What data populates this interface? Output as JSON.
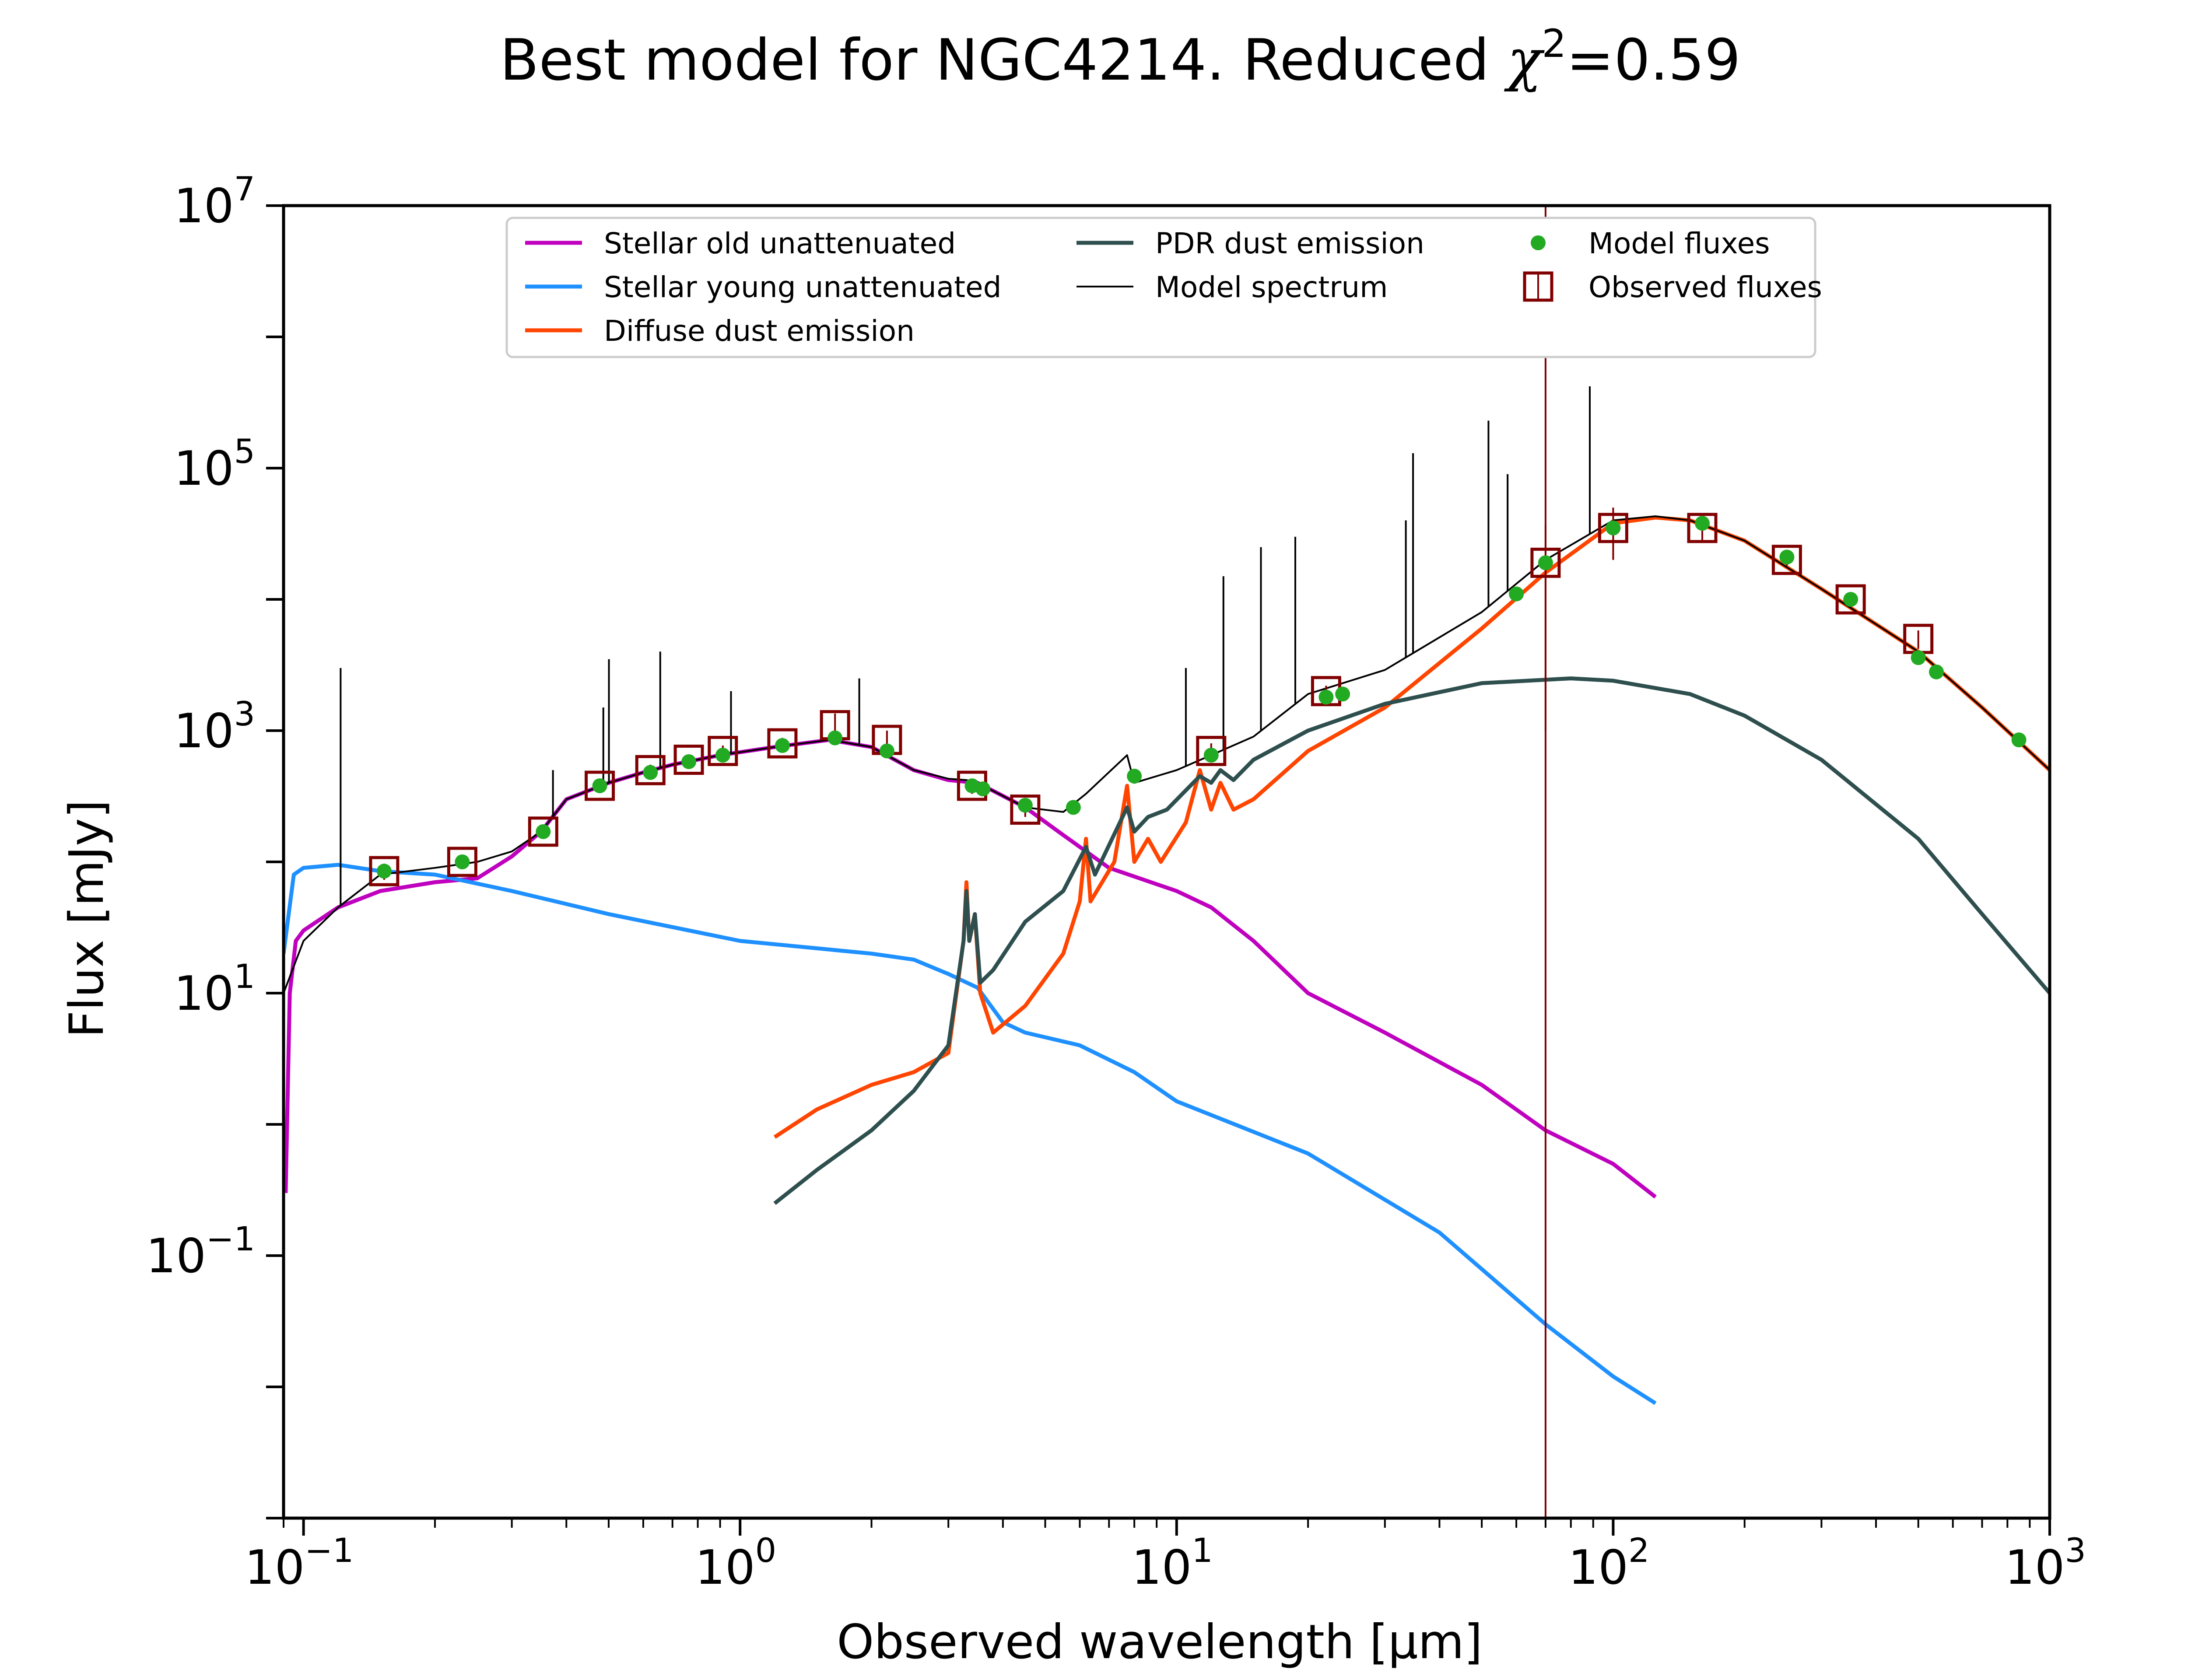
{
  "title": {
    "prefix": "Best model for NGC4214. Reduced ",
    "chi": "χ",
    "sup": "2",
    "suffix": "=0.59"
  },
  "chart_data": {
    "type": "line",
    "xlabel": "Observed wavelength [μm]",
    "ylabel": "Flux [mJy]",
    "xscale": "log",
    "yscale": "log",
    "xlim": [
      0.09,
      1000
    ],
    "ylim": [
      0.001,
      10000000
    ],
    "xticks": [
      {
        "value": 0.1,
        "base": "10",
        "exp": "−1"
      },
      {
        "value": 1,
        "base": "10",
        "exp": "0"
      },
      {
        "value": 10,
        "base": "10",
        "exp": "1"
      },
      {
        "value": 100,
        "base": "10",
        "exp": "2"
      },
      {
        "value": 1000,
        "base": "10",
        "exp": "3"
      }
    ],
    "yticks": [
      {
        "value": 0.1,
        "base": "10",
        "exp": "−1"
      },
      {
        "value": 10,
        "base": "10",
        "exp": "1"
      },
      {
        "value": 1000,
        "base": "10",
        "exp": "3"
      },
      {
        "value": 100000,
        "base": "10",
        "exp": "5"
      },
      {
        "value": 10000000,
        "base": "10",
        "exp": "7"
      }
    ],
    "legend": {
      "position": "top",
      "entries": [
        {
          "label": "Stellar old unattenuated",
          "color": "#bf00bf",
          "kind": "line"
        },
        {
          "label": "Stellar young unattenuated",
          "color": "#1e90ff",
          "kind": "line"
        },
        {
          "label": "Diffuse dust emission",
          "color": "#ff4500",
          "kind": "line"
        },
        {
          "label": "PDR dust emission",
          "color": "#2f4f4f",
          "kind": "line"
        },
        {
          "label": "Model spectrum",
          "color": "#000000",
          "kind": "thin-line"
        },
        {
          "label": "Model fluxes",
          "color": "#22aa22",
          "kind": "dot"
        },
        {
          "label": "Observed fluxes",
          "color": "#800000",
          "kind": "square"
        }
      ]
    },
    "series": [
      {
        "name": "Stellar old unattenuated",
        "color": "#bf00bf",
        "points": [
          [
            0.091,
            0.3
          ],
          [
            0.093,
            10
          ],
          [
            0.096,
            25
          ],
          [
            0.1,
            30
          ],
          [
            0.12,
            45
          ],
          [
            0.15,
            60
          ],
          [
            0.2,
            70
          ],
          [
            0.25,
            75
          ],
          [
            0.3,
            110
          ],
          [
            0.35,
            170
          ],
          [
            0.4,
            300
          ],
          [
            0.5,
            400
          ],
          [
            0.6,
            480
          ],
          [
            0.7,
            550
          ],
          [
            0.9,
            650
          ],
          [
            1.2,
            750
          ],
          [
            1.6,
            850
          ],
          [
            2.0,
            750
          ],
          [
            2.5,
            500
          ],
          [
            3.0,
            420
          ],
          [
            3.5,
            400
          ],
          [
            4.5,
            260
          ],
          [
            5.5,
            160
          ],
          [
            7,
            90
          ],
          [
            10,
            60
          ],
          [
            12,
            45
          ],
          [
            15,
            25
          ],
          [
            20,
            10
          ],
          [
            30,
            5
          ],
          [
            50,
            2
          ],
          [
            70,
            0.9
          ],
          [
            100,
            0.5
          ],
          [
            125,
            0.28
          ]
        ]
      },
      {
        "name": "Stellar young unattenuated",
        "color": "#1e90ff",
        "points": [
          [
            0.09,
            20
          ],
          [
            0.095,
            80
          ],
          [
            0.1,
            90
          ],
          [
            0.12,
            95
          ],
          [
            0.15,
            85
          ],
          [
            0.2,
            80
          ],
          [
            0.3,
            60
          ],
          [
            0.5,
            40
          ],
          [
            1.0,
            25
          ],
          [
            2.0,
            20
          ],
          [
            2.5,
            18
          ],
          [
            3.0,
            14
          ],
          [
            3.5,
            11
          ],
          [
            4,
            6
          ],
          [
            4.5,
            5
          ],
          [
            6,
            4
          ],
          [
            8,
            2.5
          ],
          [
            10,
            1.5
          ],
          [
            20,
            0.6
          ],
          [
            40,
            0.15
          ],
          [
            70,
            0.03
          ],
          [
            100,
            0.012
          ],
          [
            125,
            0.0075
          ]
        ]
      },
      {
        "name": "Diffuse dust emission",
        "color": "#ff4500",
        "points": [
          [
            1.2,
            0.8
          ],
          [
            1.5,
            1.3
          ],
          [
            2.0,
            2.0
          ],
          [
            2.5,
            2.5
          ],
          [
            3.0,
            3.5
          ],
          [
            3.25,
            25
          ],
          [
            3.3,
            70
          ],
          [
            3.35,
            25
          ],
          [
            3.45,
            40
          ],
          [
            3.55,
            10
          ],
          [
            3.8,
            5
          ],
          [
            4.5,
            8
          ],
          [
            5.5,
            20
          ],
          [
            6.0,
            50
          ],
          [
            6.2,
            150
          ],
          [
            6.35,
            50
          ],
          [
            7.2,
            100
          ],
          [
            7.7,
            380
          ],
          [
            8.0,
            100
          ],
          [
            8.6,
            150
          ],
          [
            9.2,
            100
          ],
          [
            10.5,
            200
          ],
          [
            11.3,
            500
          ],
          [
            12.0,
            250
          ],
          [
            12.6,
            400
          ],
          [
            13.5,
            250
          ],
          [
            15,
            300
          ],
          [
            20,
            700
          ],
          [
            30,
            1500
          ],
          [
            50,
            6000
          ],
          [
            70,
            16000
          ],
          [
            100,
            38000
          ],
          [
            125,
            42000
          ],
          [
            150,
            40000
          ],
          [
            200,
            28000
          ],
          [
            300,
            12000
          ],
          [
            500,
            4000
          ],
          [
            700,
            1500
          ],
          [
            1000,
            500
          ]
        ]
      },
      {
        "name": "PDR dust emission",
        "color": "#2f4f4f",
        "points": [
          [
            1.2,
            0.25
          ],
          [
            1.5,
            0.45
          ],
          [
            2.0,
            0.9
          ],
          [
            2.5,
            1.8
          ],
          [
            3.0,
            4
          ],
          [
            3.25,
            25
          ],
          [
            3.3,
            60
          ],
          [
            3.35,
            25
          ],
          [
            3.45,
            40
          ],
          [
            3.55,
            12
          ],
          [
            3.8,
            15
          ],
          [
            4.5,
            35
          ],
          [
            5.5,
            60
          ],
          [
            6.2,
            130
          ],
          [
            6.5,
            80
          ],
          [
            7.7,
            260
          ],
          [
            8.0,
            170
          ],
          [
            8.6,
            220
          ],
          [
            9.5,
            250
          ],
          [
            11.3,
            450
          ],
          [
            12.0,
            400
          ],
          [
            12.6,
            500
          ],
          [
            13.5,
            420
          ],
          [
            15,
            600
          ],
          [
            20,
            1000
          ],
          [
            30,
            1600
          ],
          [
            50,
            2300
          ],
          [
            80,
            2500
          ],
          [
            100,
            2400
          ],
          [
            150,
            1900
          ],
          [
            200,
            1300
          ],
          [
            300,
            600
          ],
          [
            500,
            150
          ],
          [
            700,
            40
          ],
          [
            1000,
            10
          ]
        ]
      },
      {
        "name": "Model spectrum",
        "color": "#000000",
        "points": [
          [
            0.09,
            10
          ],
          [
            0.1,
            25
          ],
          [
            0.12,
            45
          ],
          [
            0.15,
            80
          ],
          [
            0.2,
            90
          ],
          [
            0.25,
            100
          ],
          [
            0.3,
            120
          ],
          [
            0.35,
            170
          ],
          [
            0.4,
            300
          ],
          [
            0.5,
            400
          ],
          [
            0.6,
            480
          ],
          [
            0.7,
            550
          ],
          [
            0.9,
            650
          ],
          [
            1.2,
            750
          ],
          [
            1.6,
            850
          ],
          [
            2.0,
            750
          ],
          [
            2.5,
            500
          ],
          [
            3.0,
            430
          ],
          [
            3.3,
            420
          ],
          [
            3.5,
            400
          ],
          [
            4.5,
            260
          ],
          [
            5.5,
            240
          ],
          [
            6.2,
            330
          ],
          [
            7.7,
            650
          ],
          [
            8.0,
            400
          ],
          [
            10,
            500
          ],
          [
            12,
            650
          ],
          [
            15,
            900
          ],
          [
            20,
            1900
          ],
          [
            30,
            2900
          ],
          [
            50,
            8000
          ],
          [
            70,
            20000
          ],
          [
            100,
            40000
          ],
          [
            125,
            43000
          ],
          [
            150,
            40000
          ],
          [
            200,
            28000
          ],
          [
            300,
            12000
          ],
          [
            500,
            4000
          ],
          [
            700,
            1500
          ],
          [
            1000,
            500
          ]
        ]
      }
    ],
    "model_spectrum_emission_lines": [
      {
        "x": 0.1216,
        "y": 3000
      },
      {
        "x": 0.3727,
        "y": 500
      },
      {
        "x": 0.4861,
        "y": 1500
      },
      {
        "x": 0.5007,
        "y": 3500
      },
      {
        "x": 0.6563,
        "y": 4000
      },
      {
        "x": 0.9532,
        "y": 2000
      },
      {
        "x": 1.875,
        "y": 2500
      },
      {
        "x": 10.5,
        "y": 3000
      },
      {
        "x": 12.8,
        "y": 15000
      },
      {
        "x": 15.6,
        "y": 25000
      },
      {
        "x": 18.7,
        "y": 30000
      },
      {
        "x": 33.5,
        "y": 40000
      },
      {
        "x": 34.8,
        "y": 130000
      },
      {
        "x": 51.8,
        "y": 230000
      },
      {
        "x": 57.3,
        "y": 90000
      },
      {
        "x": 88.4,
        "y": 420000
      }
    ],
    "model_fluxes": [
      [
        0.153,
        85
      ],
      [
        0.231,
        100
      ],
      [
        0.354,
        170
      ],
      [
        0.477,
        380
      ],
      [
        0.623,
        480
      ],
      [
        0.763,
        580
      ],
      [
        0.913,
        650
      ],
      [
        1.25,
        770
      ],
      [
        1.65,
        880
      ],
      [
        2.17,
        700
      ],
      [
        3.4,
        380
      ],
      [
        3.6,
        360
      ],
      [
        4.5,
        270
      ],
      [
        5.8,
        260
      ],
      [
        8.0,
        450
      ],
      [
        12.0,
        650
      ],
      [
        22.0,
        1800
      ],
      [
        24.0,
        1900
      ],
      [
        60,
        11000
      ],
      [
        70,
        19000
      ],
      [
        100,
        35000
      ],
      [
        160,
        38000
      ],
      [
        250,
        21000
      ],
      [
        350,
        10000
      ],
      [
        500,
        3600
      ],
      [
        550,
        2800
      ],
      [
        850,
        850
      ]
    ],
    "observed_fluxes": [
      [
        0.153,
        85,
        12
      ],
      [
        0.231,
        100,
        12
      ],
      [
        0.354,
        170,
        20
      ],
      [
        0.477,
        380,
        40
      ],
      [
        0.623,
        500,
        50
      ],
      [
        0.763,
        600,
        60
      ],
      [
        0.913,
        700,
        70
      ],
      [
        1.25,
        800,
        80
      ],
      [
        1.65,
        1100,
        250
      ],
      [
        2.17,
        850,
        150
      ],
      [
        3.4,
        380,
        50
      ],
      [
        4.5,
        250,
        30
      ],
      [
        12.0,
        700,
        100
      ],
      [
        22.0,
        2000,
        200
      ],
      [
        70,
        19000,
        18000
      ],
      [
        100,
        35000,
        15000
      ],
      [
        160,
        35000,
        8000
      ],
      [
        250,
        20000,
        2000
      ],
      [
        350,
        10000,
        1000
      ],
      [
        500,
        5000,
        800
      ]
    ],
    "vertical_line": {
      "x": 70,
      "color": "#800000"
    },
    "grid": false
  }
}
